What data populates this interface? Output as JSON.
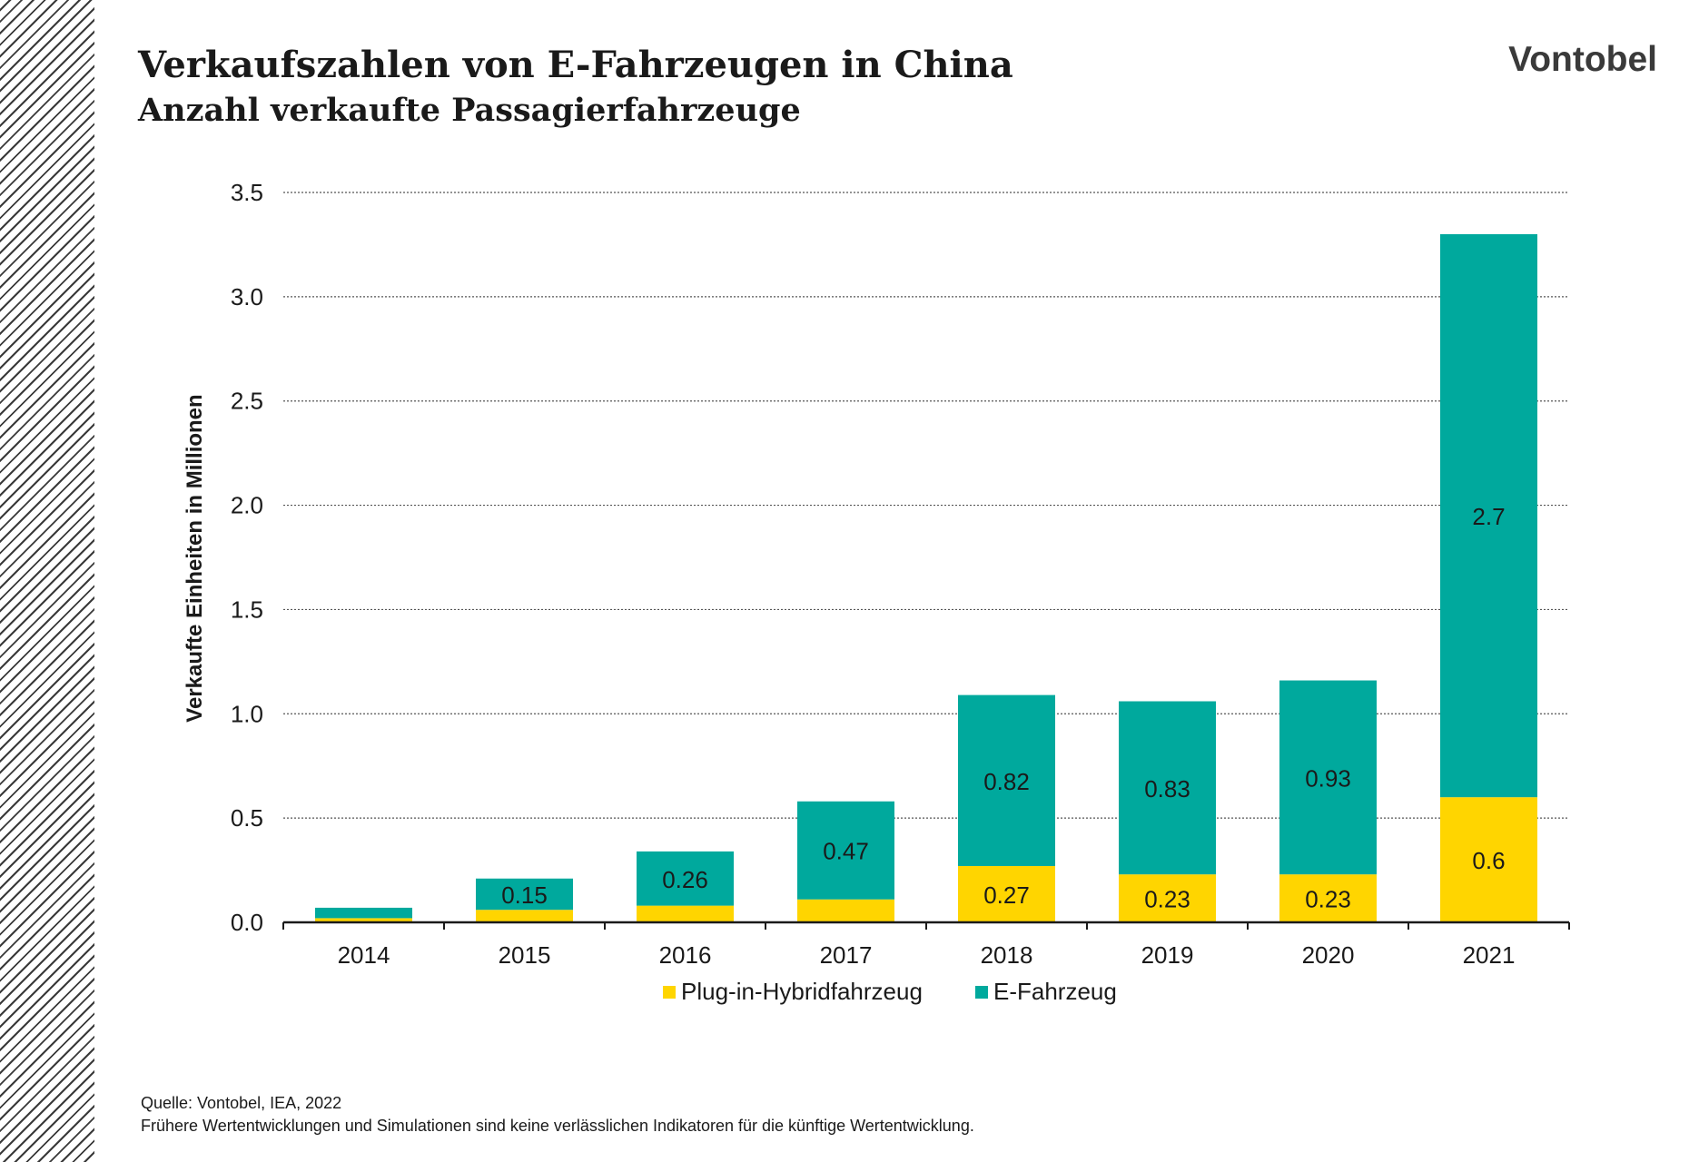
{
  "header": {
    "title": "Verkaufszahlen von E-Fahrzeugen in China",
    "subtitle": "Anzahl verkaufte Passagierfahrzeuge",
    "brand": "Vontobel"
  },
  "footer": {
    "source": "Quelle: Vontobel, IEA, 2022",
    "disclaimer": "Frühere Wertentwicklungen und Simulationen sind keine verlässlichen Indikatoren für die künftige Wertentwicklung."
  },
  "colors": {
    "plugin": "#FFD500",
    "ev": "#00A99D",
    "grid": "#555555",
    "axis": "#1a1a1a"
  },
  "chart_data": {
    "type": "bar",
    "stacked": true,
    "categories": [
      "2014",
      "2015",
      "2016",
      "2017",
      "2018",
      "2019",
      "2020",
      "2021"
    ],
    "series": [
      {
        "name": "Plug-in-Hybridfahrzeug",
        "color": "#FFD500",
        "values": [
          0.02,
          0.06,
          0.08,
          0.11,
          0.27,
          0.23,
          0.23,
          0.6
        ],
        "labels": [
          "",
          "",
          "",
          "",
          "0.27",
          "0.23",
          "0.23",
          "0.6"
        ]
      },
      {
        "name": "E-Fahrzeug",
        "color": "#00A99D",
        "values": [
          0.05,
          0.15,
          0.26,
          0.47,
          0.82,
          0.83,
          0.93,
          2.7
        ],
        "labels": [
          "",
          "0.15",
          "0.26",
          "0.47",
          "0.82",
          "0.83",
          "0.93",
          "2.7"
        ]
      }
    ],
    "ylabel": "Verkaufte Einheiten in Millionen",
    "xlabel": "",
    "ylim": [
      0,
      3.5
    ],
    "yticks": [
      "0.0",
      "0.5",
      "1.0",
      "1.5",
      "2.0",
      "2.5",
      "3.0",
      "3.5"
    ],
    "grid": true,
    "legend_position": "bottom"
  }
}
